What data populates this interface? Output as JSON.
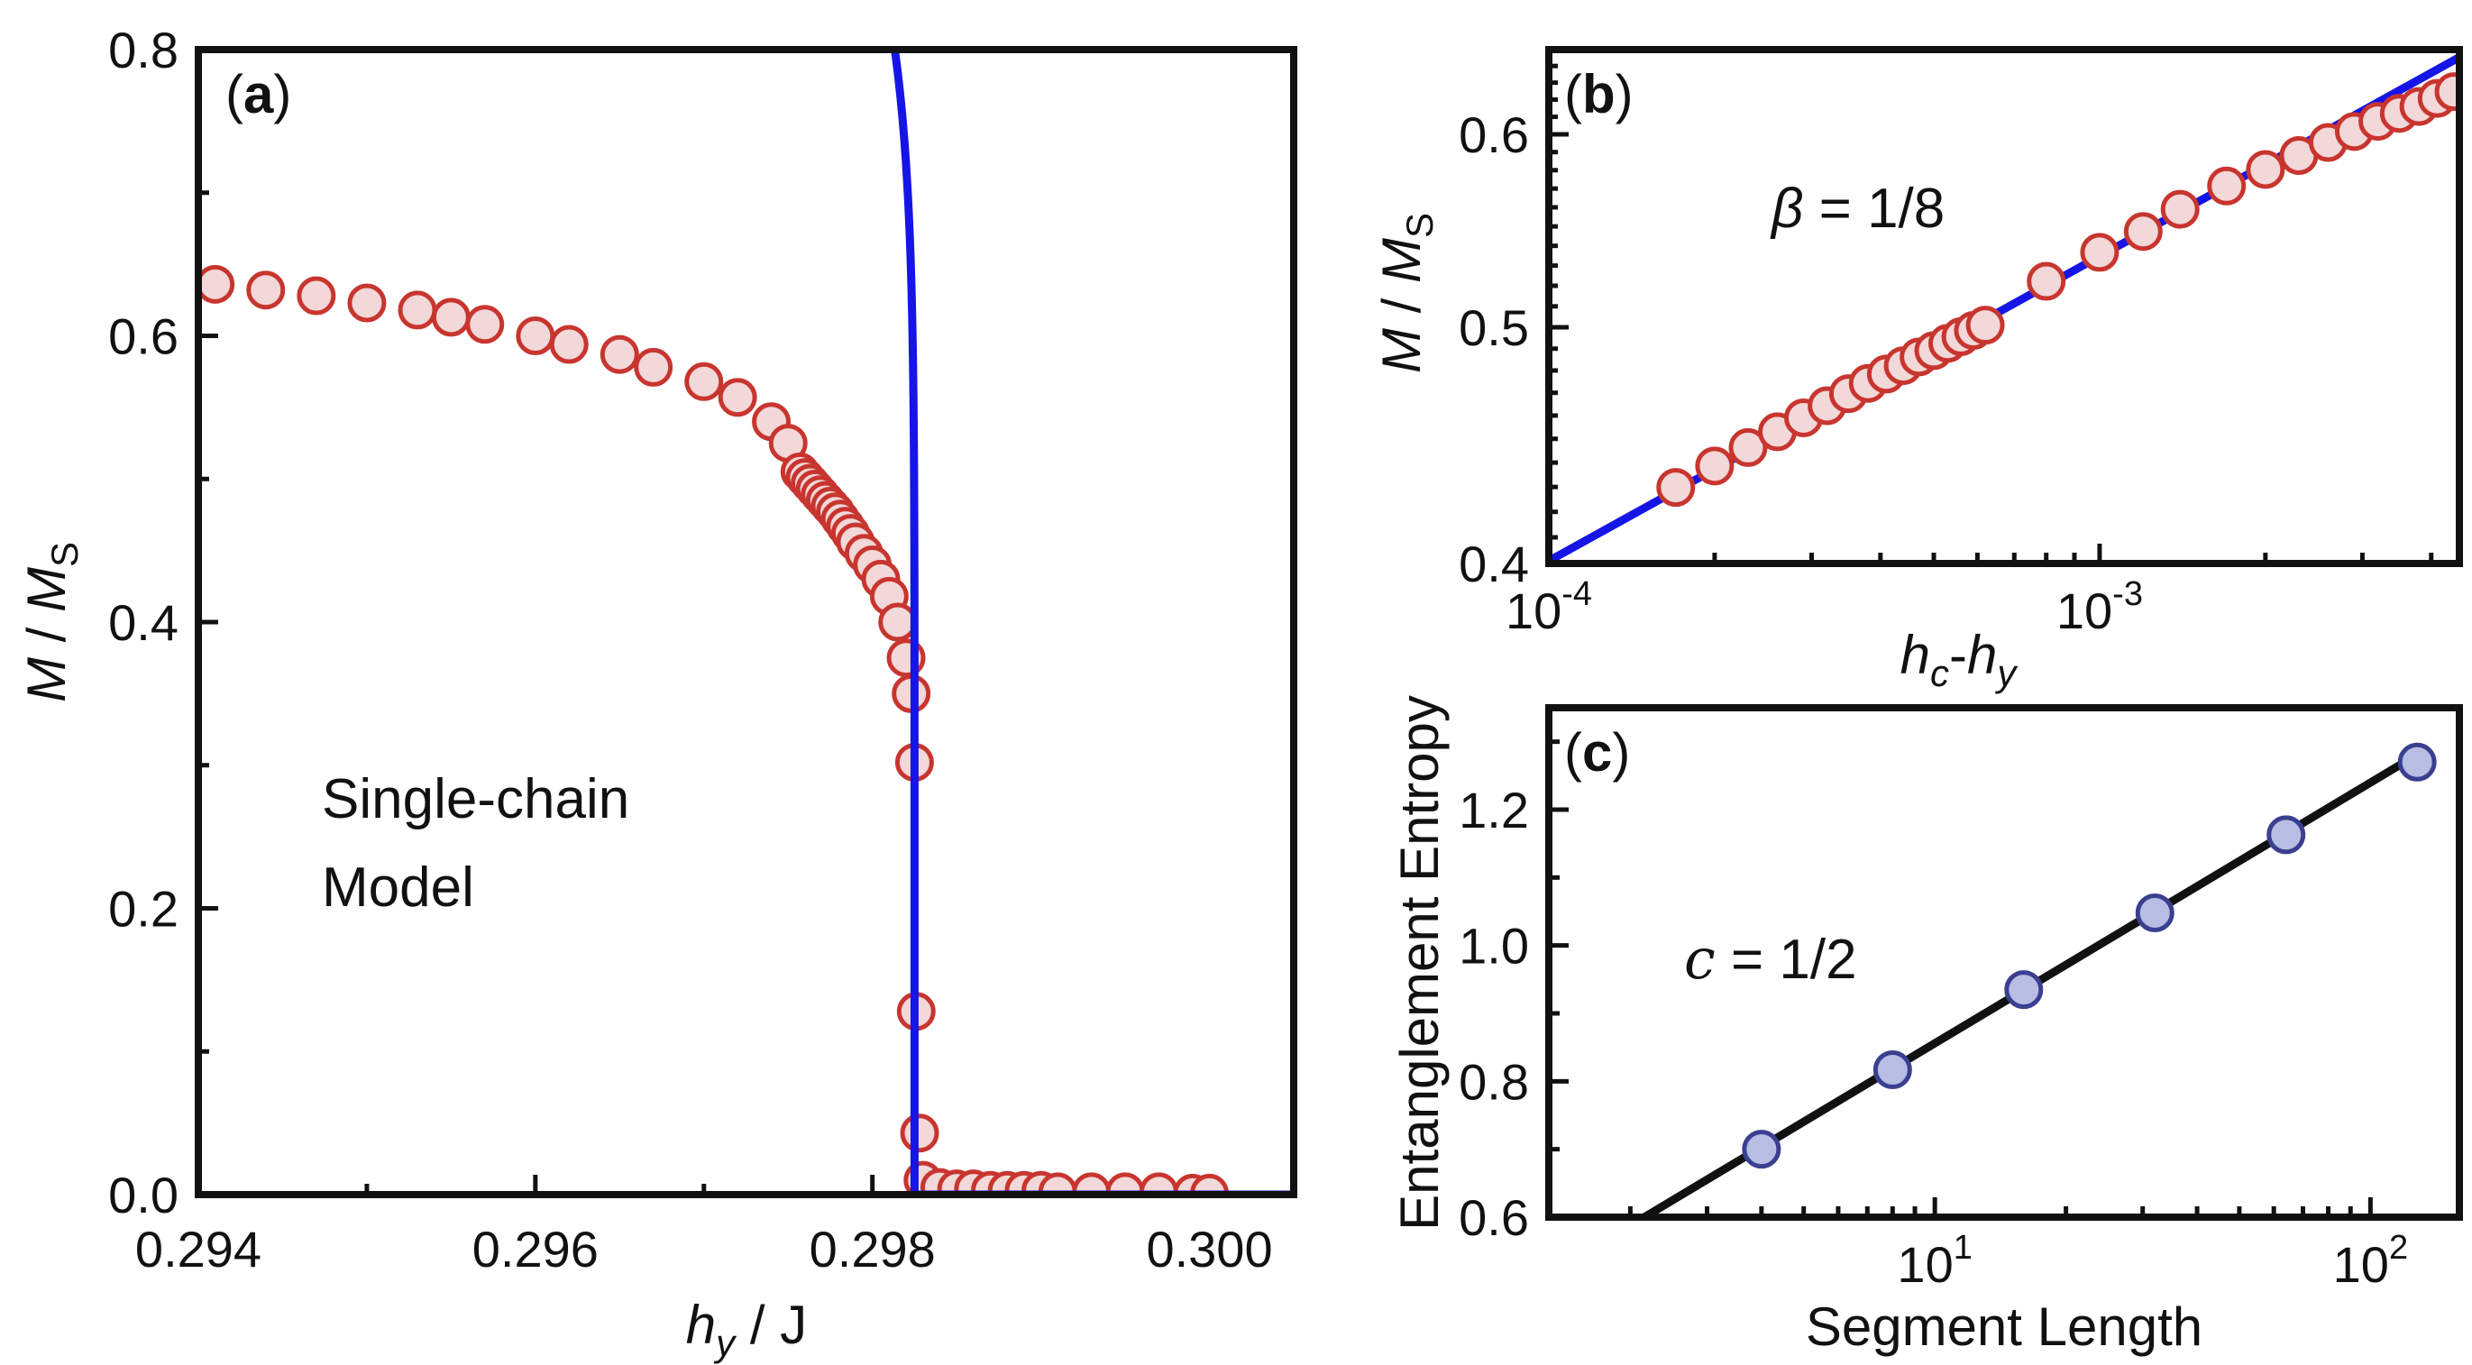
{
  "chart_data": [
    {
      "panel": "(a)",
      "type": "scatter",
      "xlabel": {
        "italic": "h",
        "sub": "y",
        "rest": " / J"
      },
      "ylabel": {
        "italic": "M",
        "mid": " / ",
        "italic2": "M",
        "sub": "S"
      },
      "xlim": [
        0.294,
        0.3005
      ],
      "ylim": [
        0.0,
        0.8
      ],
      "x_ticks": [
        "0.294",
        "0.296",
        "0.298",
        "0.300"
      ],
      "x_tick_values": [
        0.294,
        0.296,
        0.298,
        0.3
      ],
      "y_ticks": [
        "0.0",
        "0.2",
        "0.4",
        "0.6",
        "0.8"
      ],
      "y_tick_values": [
        0.0,
        0.2,
        0.4,
        0.6,
        0.8
      ],
      "annotation": [
        "Single-chain",
        "Model"
      ],
      "fit_hc": 0.29825,
      "fit_amplitude": 2.48,
      "fit_beta": 0.125,
      "series": [
        {
          "marker": "circle",
          "color": "#c8352f",
          "fill": "#f2d8d8",
          "points": [
            [
              0.2941,
              0.636
            ],
            [
              0.2944,
              0.632
            ],
            [
              0.2947,
              0.628
            ],
            [
              0.295,
              0.623
            ],
            [
              0.2953,
              0.618
            ],
            [
              0.2955,
              0.613
            ],
            [
              0.2957,
              0.608
            ],
            [
              0.296,
              0.6
            ],
            [
              0.2962,
              0.594
            ],
            [
              0.2965,
              0.587
            ],
            [
              0.2967,
              0.578
            ],
            [
              0.297,
              0.568
            ],
            [
              0.2972,
              0.557
            ],
            [
              0.2974,
              0.54
            ],
            [
              0.2975,
              0.525
            ],
            [
              0.29757,
              0.505
            ],
            [
              0.2976,
              0.501
            ],
            [
              0.29763,
              0.497
            ],
            [
              0.29766,
              0.493
            ],
            [
              0.29769,
              0.489
            ],
            [
              0.29772,
              0.485
            ],
            [
              0.29775,
              0.481
            ],
            [
              0.29778,
              0.477
            ],
            [
              0.29781,
              0.472
            ],
            [
              0.29784,
              0.467
            ],
            [
              0.29787,
              0.462
            ],
            [
              0.2979,
              0.456
            ],
            [
              0.29795,
              0.448
            ],
            [
              0.298,
              0.44
            ],
            [
              0.29805,
              0.43
            ],
            [
              0.2981,
              0.418
            ],
            [
              0.29815,
              0.4
            ],
            [
              0.2982,
              0.375
            ],
            [
              0.29823,
              0.35
            ],
            [
              0.29825,
              0.302
            ],
            [
              0.29826,
              0.128
            ],
            [
              0.29828,
              0.043
            ],
            [
              0.2983,
              0.01
            ],
            [
              0.2984,
              0.005
            ],
            [
              0.2985,
              0.004
            ],
            [
              0.2986,
              0.004
            ],
            [
              0.2987,
              0.003
            ],
            [
              0.2988,
              0.003
            ],
            [
              0.2989,
              0.003
            ],
            [
              0.299,
              0.003
            ],
            [
              0.2991,
              0.002
            ],
            [
              0.2993,
              0.002
            ],
            [
              0.2995,
              0.002
            ],
            [
              0.2997,
              0.002
            ],
            [
              0.2999,
              0.001
            ],
            [
              0.3,
              0.001
            ]
          ]
        }
      ]
    },
    {
      "panel": "(b)",
      "type": "scatter",
      "xlabel": {
        "italic": "h",
        "sub": "c",
        "mid": "-",
        "italic2": "h",
        "sub2": "y"
      },
      "ylabel": {
        "italic": "M",
        "mid": " / ",
        "italic2": "M",
        "sub": "S"
      },
      "x_scale": "log",
      "y_scale": "log",
      "xlim": [
        0.0001,
        0.0045
      ],
      "ylim": [
        0.4,
        0.65
      ],
      "x_ticks": [
        {
          "base": "10",
          "exp": "-4",
          "value": 0.0001
        },
        {
          "base": "10",
          "exp": "-3",
          "value": 0.001
        }
      ],
      "y_ticks": [
        "0.4",
        "0.5",
        "0.6"
      ],
      "y_tick_values": [
        0.4,
        0.5,
        0.6
      ],
      "annotation": {
        "symbol": "β",
        "rest": " = 1/8"
      },
      "fit_amplitude": 1.268,
      "fit_beta": 0.125,
      "series": [
        {
          "marker": "circle",
          "color": "#c8352f",
          "fill": "#f2d8d8",
          "points": [
            [
              0.00017,
              0.4298
            ],
            [
              0.0002,
              0.4386
            ],
            [
              0.00023,
              0.4463
            ],
            [
              0.00026,
              0.453
            ],
            [
              0.00029,
              0.459
            ],
            [
              0.00032,
              0.4643
            ],
            [
              0.00035,
              0.4696
            ],
            [
              0.00038,
              0.4742
            ],
            [
              0.00041,
              0.4784
            ],
            [
              0.00044,
              0.4822
            ],
            [
              0.00047,
              0.4862
            ],
            [
              0.0005,
              0.4891
            ],
            [
              0.00053,
              0.4925
            ],
            [
              0.00056,
              0.4956
            ],
            [
              0.00059,
              0.4985
            ],
            [
              0.00062,
              0.501
            ],
            [
              0.0008,
              0.5222
            ],
            [
              0.001,
              0.5367
            ],
            [
              0.0012,
              0.5474
            ],
            [
              0.0014,
              0.559
            ],
            [
              0.0017,
              0.5714
            ],
            [
              0.002,
              0.5804
            ],
            [
              0.0023,
              0.5881
            ],
            [
              0.0026,
              0.5954
            ],
            [
              0.0029,
              0.6016
            ],
            [
              0.0032,
              0.6074
            ],
            [
              0.0035,
              0.612
            ],
            [
              0.0038,
              0.616
            ],
            [
              0.0041,
              0.6207
            ],
            [
              0.0044,
              0.6247
            ]
          ]
        }
      ]
    },
    {
      "panel": "(c)",
      "type": "scatter",
      "xlabel": "Segment Length",
      "ylabel": "Entanglement Entropy",
      "x_scale": "log",
      "xlim": [
        1.3,
        160
      ],
      "ylim": [
        0.6,
        1.35
      ],
      "x_ticks": [
        {
          "base": "10",
          "exp": "1",
          "value": 10
        },
        {
          "base": "10",
          "exp": "2",
          "value": 100
        }
      ],
      "y_ticks": [
        "0.6",
        "0.8",
        "1.0",
        "1.2"
      ],
      "y_tick_values": [
        0.6,
        0.8,
        1.0,
        1.2
      ],
      "annotation": {
        "symbol": "c",
        "rest": " = 1/2"
      },
      "fit_slope_per_ln": 0.1667,
      "fit_intercept": 0.4721,
      "series": [
        {
          "marker": "circle",
          "color": "#3a3f8f",
          "fill": "#b8bde3",
          "points": [
            [
              4,
              0.7
            ],
            [
              8,
              0.817
            ],
            [
              16,
              0.935
            ],
            [
              32,
              1.048
            ],
            [
              64,
              1.163
            ],
            [
              128,
              1.27
            ]
          ]
        }
      ]
    }
  ]
}
